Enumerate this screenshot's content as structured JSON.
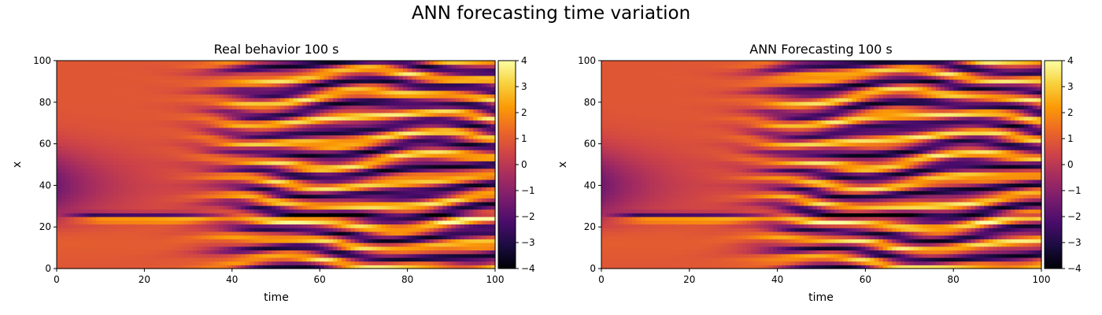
{
  "figure": {
    "suptitle": "ANN forecasting time variation"
  },
  "colormap": {
    "name": "inferno",
    "stops": [
      "#000004",
      "#1b0c41",
      "#4a0c6b",
      "#781c6d",
      "#a52c60",
      "#cf4446",
      "#ed6925",
      "#fb9b06",
      "#f7d13d",
      "#fcffa4"
    ]
  },
  "chart_data": [
    {
      "type": "heatmap",
      "title": "Real behavior 100 s",
      "xlabel": "time",
      "ylabel": "x",
      "xlim": [
        0,
        100
      ],
      "ylim": [
        0,
        100
      ],
      "xticks": [
        0,
        20,
        40,
        60,
        80,
        100
      ],
      "yticks": [
        0,
        20,
        40,
        60,
        80,
        100
      ],
      "colorbar": {
        "range": [
          -4,
          4
        ],
        "ticks": [
          4,
          3,
          2,
          1,
          0,
          -1,
          -2,
          -3,
          -4
        ]
      }
    },
    {
      "type": "heatmap",
      "title": "ANN Forecasting 100 s",
      "xlabel": "time",
      "ylabel": "x",
      "xlim": [
        0,
        100
      ],
      "ylim": [
        0,
        100
      ],
      "xticks": [
        0,
        20,
        40,
        60,
        80,
        100
      ],
      "yticks": [
        0,
        20,
        40,
        60,
        80,
        100
      ],
      "colorbar": {
        "range": [
          -4,
          4
        ],
        "ticks": [
          4,
          3,
          2,
          1,
          0,
          -1,
          -2,
          -3,
          -4
        ]
      }
    }
  ]
}
